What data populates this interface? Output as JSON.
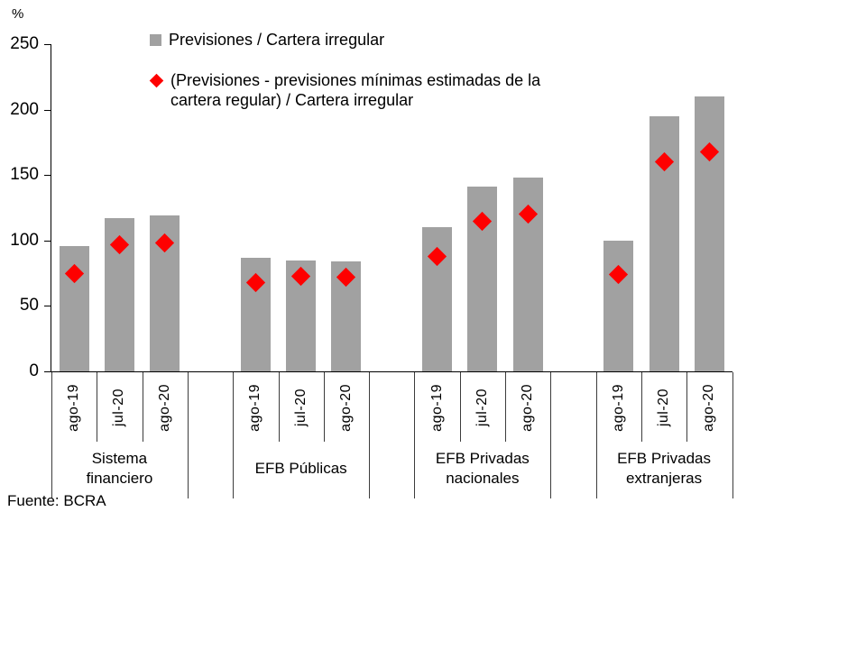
{
  "unit_label": "%",
  "source_note": "Fuente: BCRA",
  "legend": {
    "bar_label": "Previsiones / Cartera irregular",
    "point_label": "(Previsiones - previsiones mínimas estimadas de la cartera regular) / Cartera irregular"
  },
  "colors": {
    "bar": "#A1A1A1",
    "point": "#FE0000",
    "axis": "#000000",
    "separator": "#3c3c3c"
  },
  "chart_data": {
    "type": "bar",
    "title": "",
    "ylabel": "%",
    "ylim": [
      0,
      250
    ],
    "yticks": [
      0,
      50,
      100,
      150,
      200,
      250
    ],
    "grid": false,
    "legend_position": "top-center",
    "categories": [
      "ago-19",
      "jul-20",
      "ago-20"
    ],
    "groups": [
      "Sistema financiero",
      "EFB Públicas",
      "EFB Privadas nacionales",
      "EFB Privadas extranjeras"
    ],
    "series": [
      {
        "name": "Previsiones / Cartera irregular",
        "type": "bar",
        "color": "#A1A1A1",
        "values": [
          [
            96,
            117,
            119
          ],
          [
            87,
            85,
            84
          ],
          [
            110,
            141,
            148
          ],
          [
            100,
            195,
            210
          ]
        ]
      },
      {
        "name": "(Previsiones - previsiones mínimas estimadas de la cartera regular) / Cartera irregular",
        "type": "point",
        "color": "#FE0000",
        "values": [
          [
            75,
            97,
            98
          ],
          [
            68,
            73,
            72
          ],
          [
            88,
            115,
            120
          ],
          [
            74,
            160,
            168
          ]
        ]
      }
    ],
    "source": "Fuente: BCRA"
  }
}
